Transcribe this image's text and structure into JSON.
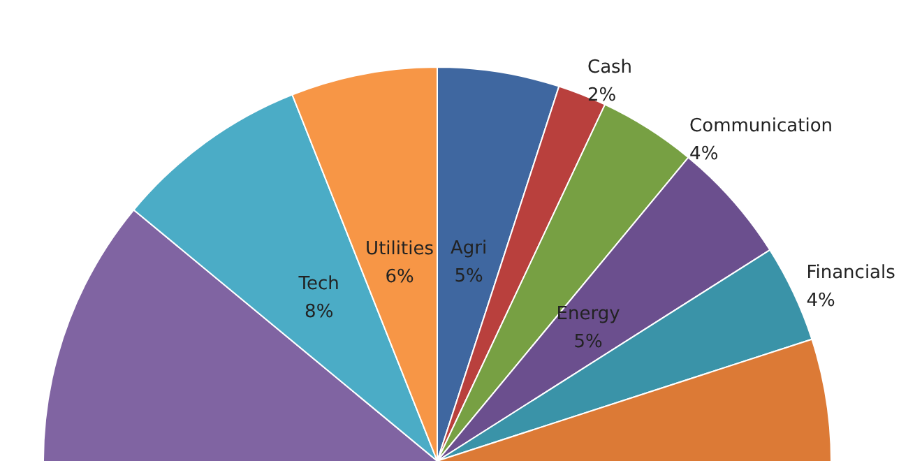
{
  "chart_data": {
    "type": "pie",
    "categories": [
      "Agri",
      "Cash",
      "Communication",
      "Energy",
      "Financials",
      null,
      null,
      "Tech",
      "Utilities"
    ],
    "values": [
      5,
      2,
      4,
      5,
      4,
      33,
      33,
      8,
      6
    ],
    "value_labels": [
      "5%",
      "2%",
      "4%",
      "5%",
      "4%",
      null,
      null,
      "8%",
      "6%"
    ],
    "colors": [
      "#3f67a0",
      "#b9403d",
      "#77a043",
      "#6b4f8e",
      "#3a93a8",
      "#dc7a36",
      "#8064a2",
      "#4bacc6",
      "#f79646"
    ]
  }
}
